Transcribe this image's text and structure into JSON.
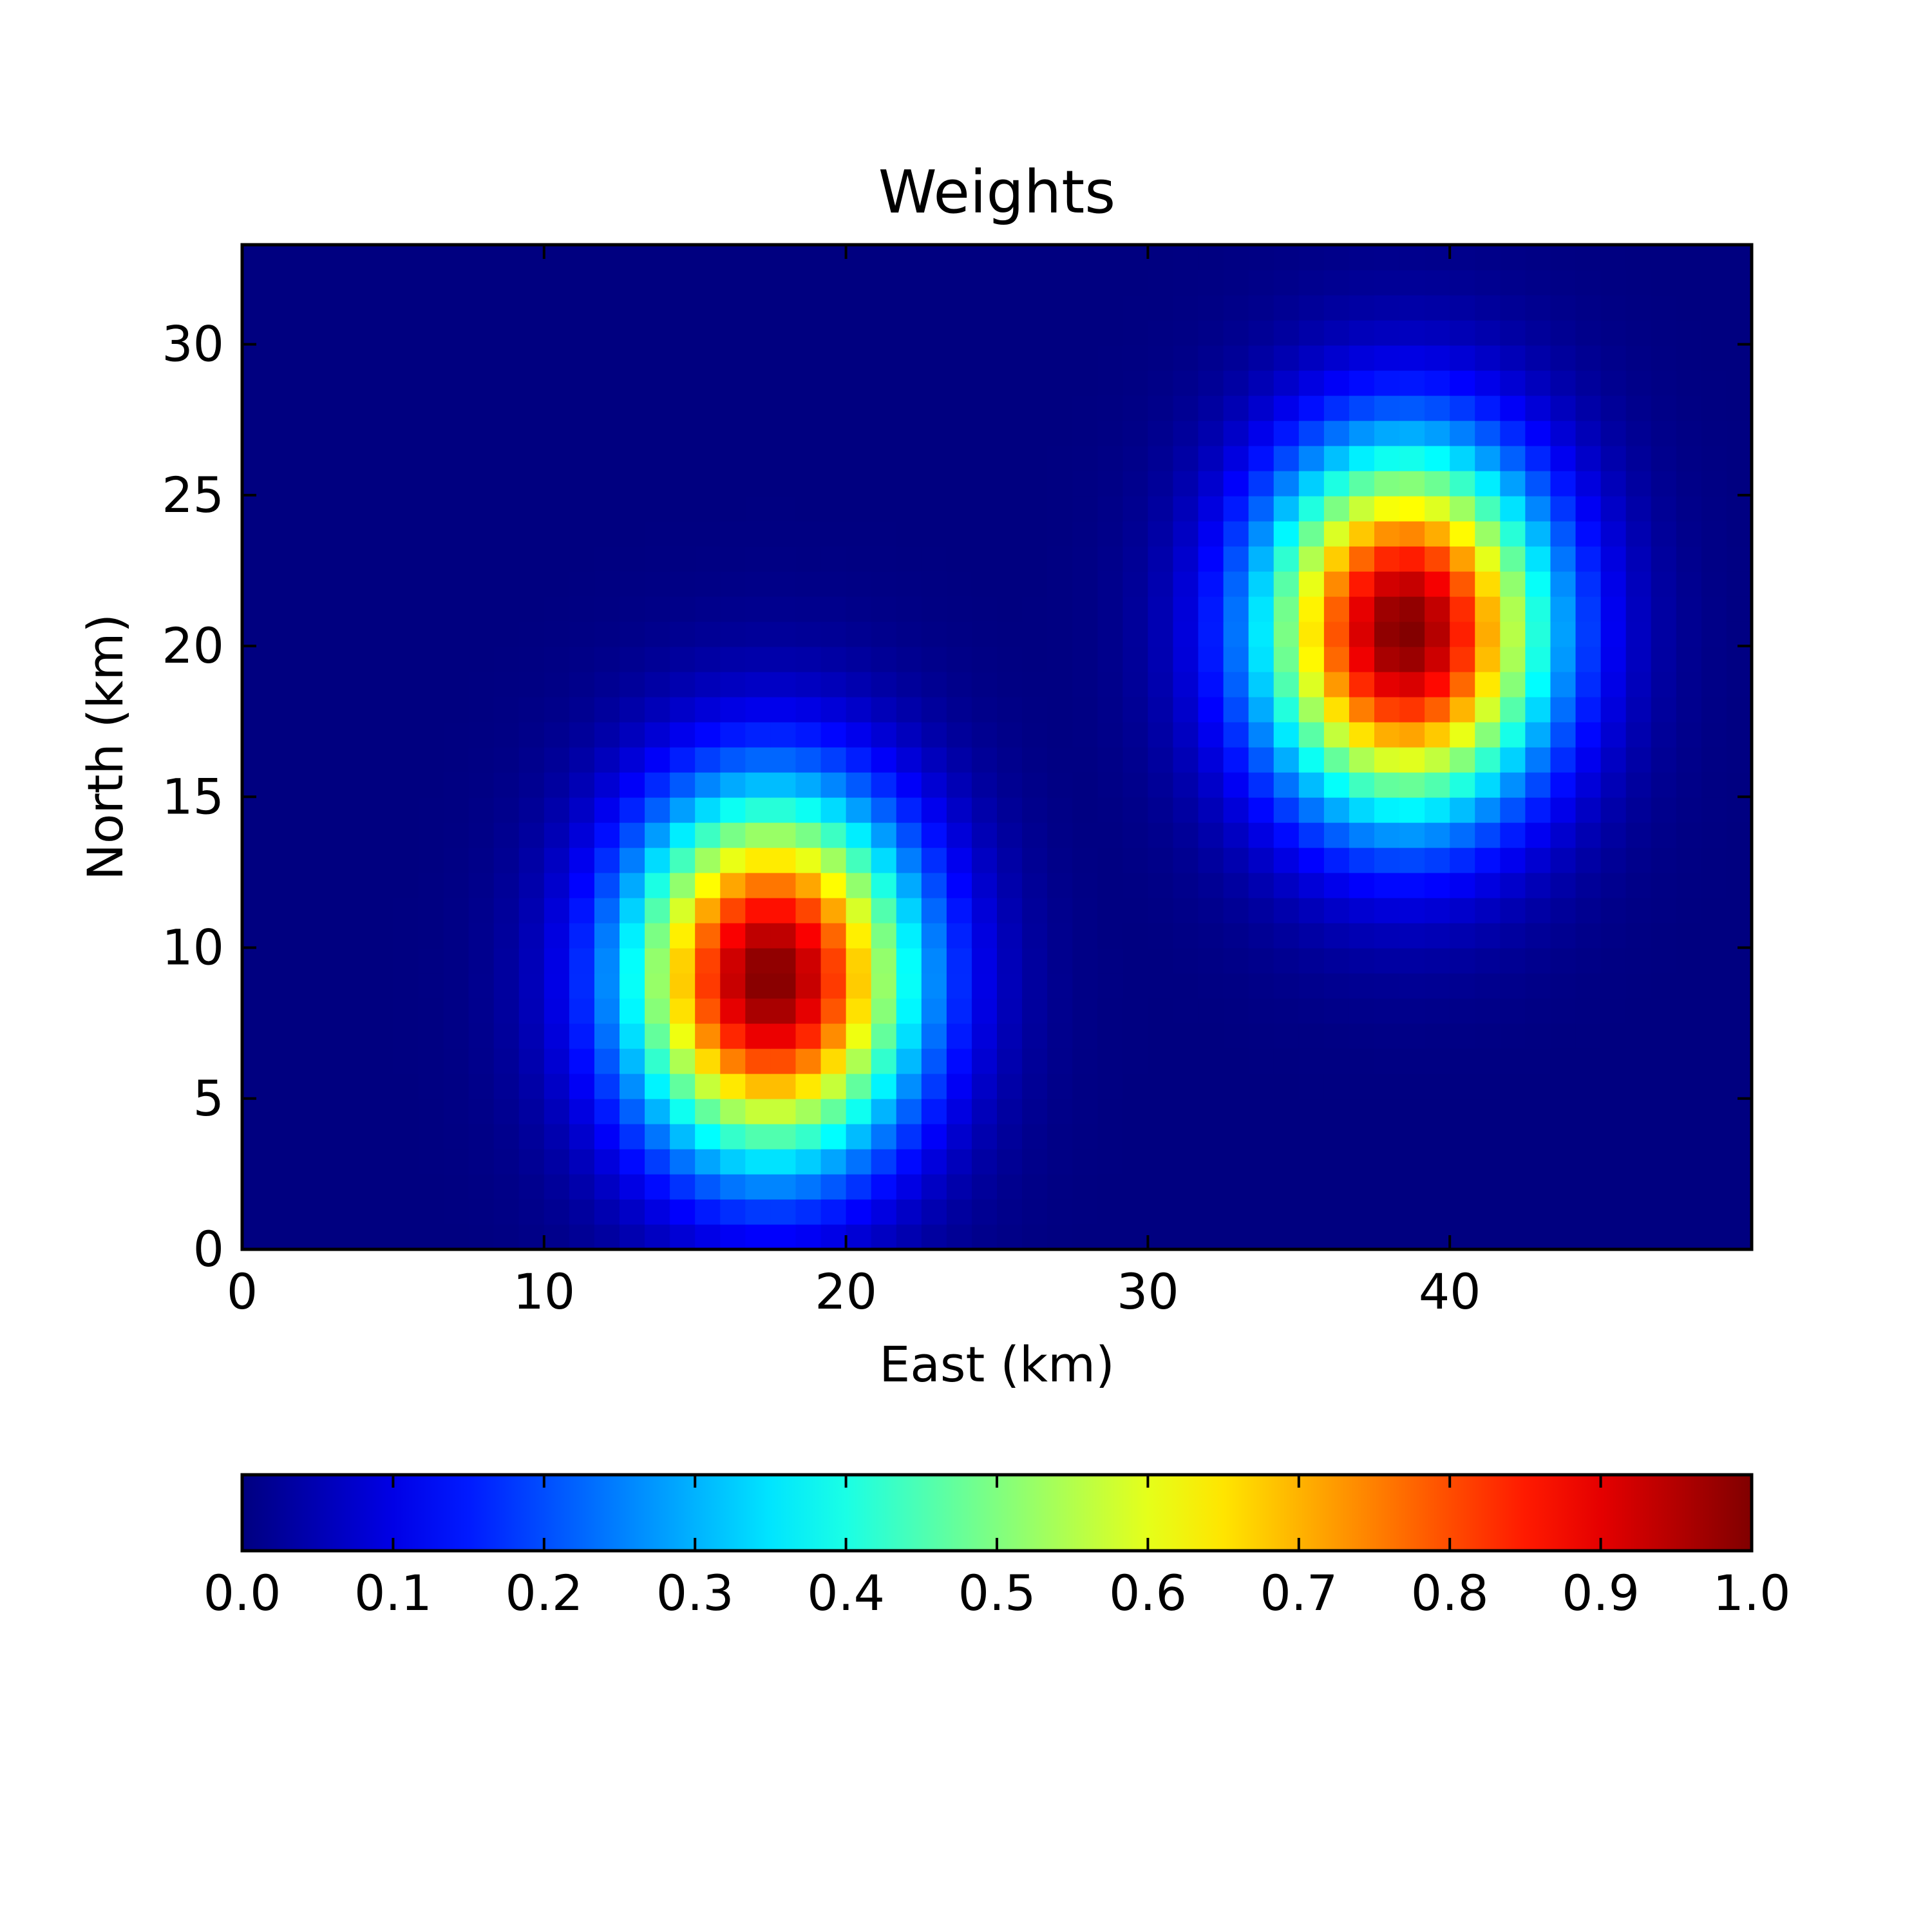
{
  "chart_data": {
    "type": "heatmap",
    "title": "Weights",
    "xlabel": "East (km)",
    "ylabel": "North (km)",
    "xlim": [
      0,
      50
    ],
    "ylim": [
      0,
      33.3
    ],
    "xticks": [
      0,
      10,
      20,
      30,
      40
    ],
    "xtick_labels": [
      "0",
      "10",
      "20",
      "30",
      "40"
    ],
    "yticks": [
      0,
      5,
      10,
      15,
      20,
      25,
      30
    ],
    "ytick_labels": [
      "0",
      "5",
      "10",
      "15",
      "20",
      "25",
      "30"
    ],
    "grid": false,
    "grid_cells": {
      "nx": 60,
      "ny": 40
    },
    "blobs": [
      {
        "center_east": 17.5,
        "center_north": 9.0,
        "peak": 1.0,
        "sigma_east": 3.3,
        "sigma_north": 4.2
      },
      {
        "center_east": 38.5,
        "center_north": 20.5,
        "peak": 1.0,
        "sigma_east": 3.3,
        "sigma_north": 4.2
      }
    ],
    "colorbar": {
      "orientation": "horizontal",
      "position": "bottom",
      "colormap": "jet",
      "range": [
        0.0,
        1.0
      ],
      "ticks": [
        0.0,
        0.1,
        0.2,
        0.3,
        0.4,
        0.5,
        0.6,
        0.7,
        0.8,
        0.9,
        1.0
      ],
      "tick_labels": [
        "0.0",
        "0.1",
        "0.2",
        "0.3",
        "0.4",
        "0.5",
        "0.6",
        "0.7",
        "0.8",
        "0.9",
        "1.0"
      ]
    }
  }
}
